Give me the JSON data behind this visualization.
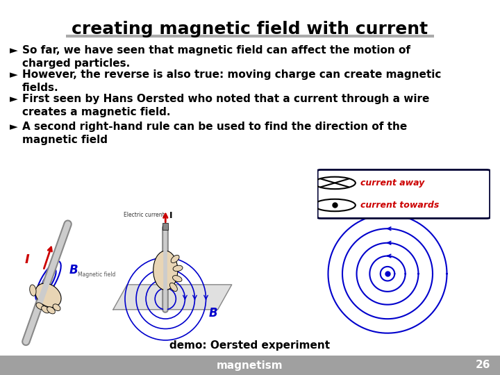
{
  "title": "creating magnetic field with current",
  "title_fontsize": 18,
  "title_color": "#000000",
  "title_underline_color": "#aaaaaa",
  "background_color": "#ffffff",
  "footer_bg_color": "#a0a0a0",
  "footer_text": "magnetism",
  "footer_page": "26",
  "footer_fontsize": 11,
  "bullet_points": [
    "So far, we have seen that magnetic field can affect the motion of\ncharged particles.",
    "However, the reverse is also true: moving charge can create magnetic\nfields.",
    "First seen by Hans Oersted who noted that a current through a wire\ncreates a magnetic field.",
    "A second right-hand rule can be used to find the direction of the\nmagnetic field"
  ],
  "bullet_fontsize": 11,
  "bullet_color": "#000000",
  "demo_label": "demo: Oersted experiment",
  "demo_fontsize": 11,
  "legend_text1": "current away",
  "legend_text2": "current towards",
  "legend_fontsize": 9,
  "legend_text_color": "#cc0000",
  "legend_border_color": "#000033",
  "circle_color": "#0000cc",
  "red_color": "#cc0000"
}
